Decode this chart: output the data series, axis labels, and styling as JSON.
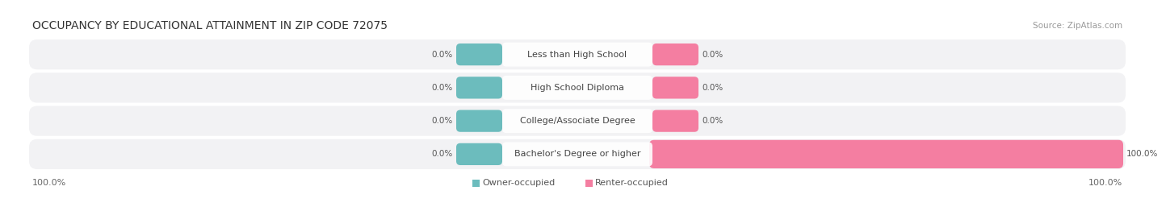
{
  "title": "OCCUPANCY BY EDUCATIONAL ATTAINMENT IN ZIP CODE 72075",
  "source": "Source: ZipAtlas.com",
  "categories": [
    "Less than High School",
    "High School Diploma",
    "College/Associate Degree",
    "Bachelor's Degree or higher"
  ],
  "owner_values": [
    0.0,
    0.0,
    0.0,
    0.0
  ],
  "renter_values": [
    0.0,
    0.0,
    0.0,
    100.0
  ],
  "owner_color": "#6CBCBD",
  "renter_color": "#F47EA1",
  "bar_bg_color": "#E8E8EA",
  "owner_label": "Owner-occupied",
  "renter_label": "Renter-occupied",
  "axis_left_label": "100.0%",
  "axis_right_label": "100.0%",
  "title_fontsize": 10,
  "source_fontsize": 7.5,
  "label_fontsize": 8,
  "legend_fontsize": 8,
  "cat_fontsize": 8,
  "val_fontsize": 7.5,
  "background_color": "#FFFFFF",
  "row_bg_color": "#F2F2F4"
}
